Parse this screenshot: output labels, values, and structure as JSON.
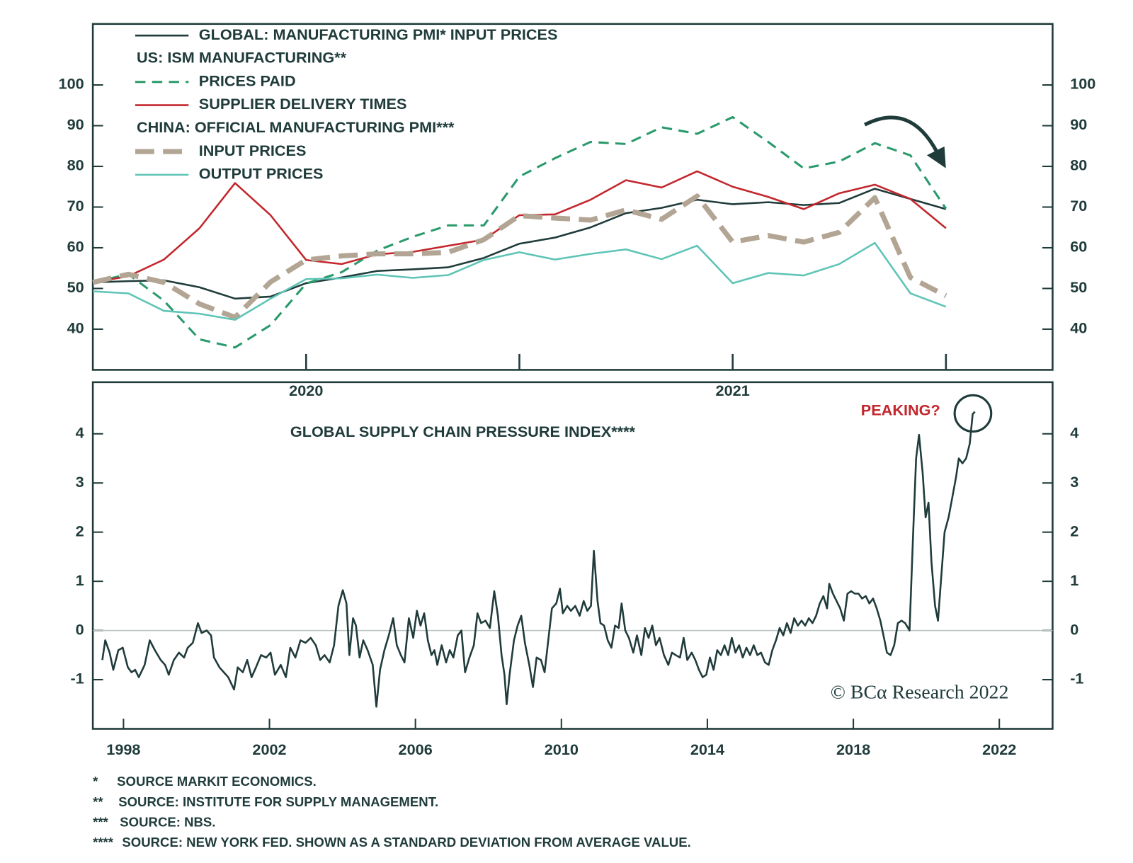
{
  "chart_data": [
    {
      "type": "line",
      "categories": [
        null,
        null,
        null,
        null,
        null,
        null,
        "2020",
        null,
        null,
        null,
        null,
        null,
        null,
        null,
        null,
        null,
        null,
        null,
        "2021",
        null,
        null,
        null,
        null,
        null,
        null
      ],
      "ylim": [
        30,
        115
      ],
      "yticks": [
        40,
        50,
        60,
        70,
        80,
        90,
        100
      ],
      "legend_headers": [
        "US: ISM MANUFACTURING**",
        "CHINA: OFFICIAL MANUFACTURING PMI***"
      ],
      "series": [
        {
          "name": "GLOBAL: MANUFACTURING PMI* INPUT PRICES",
          "color": "#1f3b3a",
          "dash": "solid",
          "width": 2.5,
          "values": [
            51.5,
            51.8,
            52,
            50.3,
            47.5,
            48,
            51.3,
            52.7,
            54.3,
            54.7,
            55.2,
            57.5,
            61,
            62.5,
            65,
            68.5,
            69.8,
            71.8,
            70.7,
            71.2,
            70.5,
            71,
            74.5,
            72,
            69.5
          ]
        },
        {
          "name": "PRICES PAID",
          "color": "#2a9a6c",
          "dash": "dashed",
          "width": 3,
          "values": [
            51.5,
            53.5,
            47,
            37.5,
            35.5,
            41,
            51.2,
            54,
            59.3,
            62.7,
            65.5,
            65.5,
            77.5,
            82,
            86,
            85.5,
            89.6,
            88,
            92.1,
            86,
            79.5,
            81.2,
            85.7,
            82.7,
            69.6
          ]
        },
        {
          "name": "SUPPLIER DELIVERY TIMES",
          "color": "#c3272d",
          "dash": "solid",
          "width": 2.5,
          "values": [
            51.5,
            53,
            57.1,
            64.8,
            75.9,
            68,
            57,
            56,
            58.4,
            59,
            60.5,
            62,
            68,
            68.2,
            71.8,
            76.6,
            74.8,
            78.8,
            75,
            72.5,
            69.5,
            73.4,
            75.5,
            72,
            64.8
          ]
        },
        {
          "name": "INPUT PRICES",
          "color": "#b3a594",
          "dash": "long-dashed",
          "width": 7,
          "values": [
            51.5,
            53.5,
            51.5,
            46.2,
            42.9,
            51.6,
            57,
            58,
            58.5,
            58.5,
            58.9,
            62,
            67.9,
            67.3,
            66.8,
            69.3,
            67,
            72.7,
            61.4,
            63,
            61.4,
            63.8,
            72.3,
            52.7,
            48.2
          ]
        },
        {
          "name": "OUTPUT PRICES",
          "color": "#5ec4b6",
          "dash": "solid",
          "width": 2.5,
          "values": [
            49.3,
            48.8,
            44.5,
            43.8,
            42.3,
            47.5,
            52.3,
            52.5,
            53.4,
            52.6,
            53.3,
            57,
            58.9,
            57.1,
            58.5,
            59.6,
            57.2,
            60.5,
            51.3,
            53.8,
            53.2,
            56,
            61.2,
            48.8,
            45.5
          ]
        }
      ]
    },
    {
      "type": "line",
      "title": "GLOBAL SUPPLY CHAIN PRESSURE INDEX****",
      "annotation": "PEAKING?",
      "watermark": "© BCα Research 2022",
      "xlim": [
        1997.16,
        2023.46
      ],
      "xticks": [
        1998,
        2002,
        2006,
        2010,
        2014,
        2018,
        2022
      ],
      "ylim": [
        -2,
        5.05
      ],
      "yticks": [
        -1,
        0,
        1,
        2,
        3,
        4
      ],
      "zero_line": true,
      "x": [
        1997.42,
        1997.5,
        1997.62,
        1997.72,
        1997.86,
        1997.98,
        1998.12,
        1998.22,
        1998.32,
        1998.42,
        1998.58,
        1998.72,
        1998.86,
        1999.02,
        1999.14,
        1999.24,
        1999.38,
        1999.52,
        1999.66,
        1999.76,
        1999.9,
        2000.04,
        2000.14,
        2000.28,
        2000.4,
        2000.48,
        2000.63,
        2000.75,
        2000.87,
        2001.03,
        2001.13,
        2001.27,
        2001.39,
        2001.51,
        2001.63,
        2001.77,
        2001.91,
        2002.03,
        2002.15,
        2002.31,
        2002.45,
        2002.57,
        2002.71,
        2002.85,
        2002.99,
        2003.13,
        2003.27,
        2003.39,
        2003.51,
        2003.65,
        2003.77,
        2003.89,
        2004.01,
        2004.11,
        2004.19,
        2004.29,
        2004.37,
        2004.47,
        2004.57,
        2004.69,
        2004.83,
        2004.93,
        2005.03,
        2005.15,
        2005.27,
        2005.39,
        2005.49,
        2005.6,
        2005.7,
        2005.82,
        2005.94,
        2006.04,
        2006.14,
        2006.24,
        2006.34,
        2006.44,
        2006.52,
        2006.6,
        2006.72,
        2006.84,
        2006.94,
        2007.04,
        2007.16,
        2007.26,
        2007.36,
        2007.48,
        2007.6,
        2007.7,
        2007.8,
        2007.92,
        2008.04,
        2008.16,
        2008.26,
        2008.36,
        2008.44,
        2008.5,
        2008.58,
        2008.7,
        2008.8,
        2008.9,
        2009.0,
        2009.12,
        2009.22,
        2009.32,
        2009.44,
        2009.54,
        2009.64,
        2009.74,
        2009.86,
        2009.96,
        2010.04,
        2010.16,
        2010.26,
        2010.38,
        2010.5,
        2010.61,
        2010.71,
        2010.81,
        2010.89,
        2010.99,
        2011.07,
        2011.17,
        2011.27,
        2011.37,
        2011.47,
        2011.57,
        2011.65,
        2011.75,
        2011.85,
        2011.97,
        2012.07,
        2012.19,
        2012.29,
        2012.39,
        2012.49,
        2012.59,
        2012.69,
        2012.81,
        2012.93,
        2013.03,
        2013.13,
        2013.25,
        2013.35,
        2013.45,
        2013.57,
        2013.67,
        2013.77,
        2013.87,
        2013.97,
        2014.07,
        2014.17,
        2014.27,
        2014.37,
        2014.47,
        2014.57,
        2014.67,
        2014.77,
        2014.87,
        2014.97,
        2015.07,
        2015.17,
        2015.27,
        2015.37,
        2015.47,
        2015.58,
        2015.68,
        2015.78,
        2015.88,
        2015.98,
        2016.08,
        2016.18,
        2016.28,
        2016.38,
        2016.48,
        2016.58,
        2016.68,
        2016.78,
        2016.88,
        2016.98,
        2017.08,
        2017.18,
        2017.28,
        2017.34,
        2017.44,
        2017.54,
        2017.64,
        2017.74,
        2017.84,
        2017.94,
        2018.04,
        2018.14,
        2018.24,
        2018.34,
        2018.44,
        2018.54,
        2018.64,
        2018.74,
        2018.84,
        2018.92,
        2019.02,
        2019.12,
        2019.22,
        2019.32,
        2019.42,
        2019.54,
        2019.64,
        2019.72,
        2019.8,
        2019.9,
        2019.98,
        2020.06,
        2020.14,
        2020.24,
        2020.32,
        2020.4,
        2020.5,
        2020.61,
        2020.71,
        2020.81,
        2020.89,
        2020.99,
        2021.09,
        2021.19,
        2021.27,
        2021.33
      ],
      "series": [
        {
          "color": "#1f3b3a",
          "dash": "solid",
          "width": 2.5,
          "values": [
            -0.6,
            -0.2,
            -0.45,
            -0.8,
            -0.4,
            -0.35,
            -0.75,
            -0.85,
            -0.8,
            -0.95,
            -0.7,
            -0.2,
            -0.4,
            -0.6,
            -0.7,
            -0.9,
            -0.6,
            -0.45,
            -0.55,
            -0.35,
            -0.25,
            0.15,
            -0.05,
            0,
            -0.1,
            -0.55,
            -0.75,
            -0.85,
            -0.95,
            -1.2,
            -0.75,
            -0.85,
            -0.6,
            -0.95,
            -0.75,
            -0.5,
            -0.55,
            -0.45,
            -0.9,
            -0.7,
            -0.95,
            -0.35,
            -0.55,
            -0.2,
            -0.25,
            -0.15,
            -0.3,
            -0.6,
            -0.5,
            -0.65,
            -0.3,
            0.5,
            0.82,
            0.55,
            -0.5,
            0.25,
            0.1,
            -0.55,
            -0.2,
            -0.4,
            -0.7,
            -1.55,
            -0.8,
            -0.4,
            -0.1,
            0.25,
            -0.3,
            -0.5,
            -0.65,
            0.25,
            -0.15,
            0.4,
            0.1,
            0.35,
            -0.2,
            -0.5,
            -0.4,
            -0.7,
            -0.3,
            -0.65,
            -0.4,
            -0.55,
            -0.1,
            0,
            -0.85,
            -0.55,
            -0.3,
            0.35,
            0.15,
            0.2,
            0.05,
            0.8,
            0.3,
            -0.5,
            -0.9,
            -1.5,
            -0.9,
            -0.2,
            0.1,
            0.3,
            -0.25,
            -0.7,
            -1.15,
            -0.55,
            -0.6,
            -0.85,
            -0.2,
            0.45,
            0.55,
            0.85,
            0.35,
            0.5,
            0.4,
            0.5,
            0.3,
            0.6,
            0.4,
            0.5,
            1.62,
            0.6,
            0.15,
            0.1,
            -0.2,
            -0.35,
            0.1,
            0.05,
            0.55,
            0,
            -0.15,
            -0.45,
            -0.1,
            -0.5,
            0.05,
            -0.15,
            0.1,
            -0.3,
            -0.15,
            -0.5,
            -0.7,
            -0.45,
            -0.5,
            -0.55,
            -0.15,
            -0.6,
            -0.45,
            -0.6,
            -0.8,
            -0.95,
            -0.9,
            -0.55,
            -0.8,
            -0.4,
            -0.5,
            -0.3,
            -0.5,
            -0.15,
            -0.45,
            -0.3,
            -0.55,
            -0.35,
            -0.5,
            -0.3,
            -0.5,
            -0.45,
            -0.65,
            -0.7,
            -0.4,
            -0.2,
            0.05,
            -0.1,
            0.15,
            -0.05,
            0.25,
            0.1,
            0.2,
            0.1,
            0.25,
            0.15,
            0.3,
            0.55,
            0.7,
            0.45,
            0.95,
            0.75,
            0.6,
            0.45,
            0.2,
            0.75,
            0.8,
            0.75,
            0.75,
            0.65,
            0.7,
            0.55,
            0.65,
            0.45,
            0.2,
            -0.15,
            -0.45,
            -0.5,
            -0.3,
            0.15,
            0.2,
            0.15,
            0,
            2,
            3.5,
            3.98,
            3.2,
            2.3,
            2.6,
            1.4,
            0.5,
            0.2,
            1,
            2,
            2.3,
            2.7,
            3.1,
            3.5,
            3.4,
            3.5,
            3.8,
            4.4,
            4.45
          ]
        }
      ]
    }
  ],
  "footnotes": [
    {
      "mark": "*",
      "text": "SOURCE MARKIT ECONOMICS."
    },
    {
      "mark": "**",
      "text": "SOURCE: INSTITUTE FOR SUPPLY MANAGEMENT."
    },
    {
      "mark": "***",
      "text": "SOURCE: NBS."
    },
    {
      "mark": "****",
      "text": "SOURCE: NEW YORK FED. SHOWN AS A STANDARD DEVIATION FROM AVERAGE VALUE."
    }
  ]
}
